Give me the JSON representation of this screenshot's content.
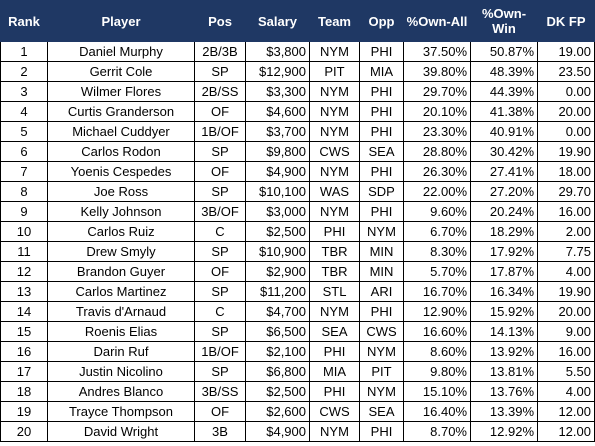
{
  "table": {
    "headers": [
      "Rank",
      "Player",
      "Pos",
      "Salary",
      "Team",
      "Opp",
      "%Own-All",
      "%Own-Win",
      "DK FP"
    ],
    "rows": [
      [
        "1",
        "Daniel Murphy",
        "2B/3B",
        "$3,800",
        "NYM",
        "PHI",
        "37.50%",
        "50.87%",
        "19.00"
      ],
      [
        "2",
        "Gerrit Cole",
        "SP",
        "$12,900",
        "PIT",
        "MIA",
        "39.80%",
        "48.39%",
        "23.50"
      ],
      [
        "3",
        "Wilmer Flores",
        "2B/SS",
        "$3,300",
        "NYM",
        "PHI",
        "29.70%",
        "44.39%",
        "0.00"
      ],
      [
        "4",
        "Curtis Granderson",
        "OF",
        "$4,600",
        "NYM",
        "PHI",
        "20.10%",
        "41.38%",
        "20.00"
      ],
      [
        "5",
        "Michael Cuddyer",
        "1B/OF",
        "$3,700",
        "NYM",
        "PHI",
        "23.30%",
        "40.91%",
        "0.00"
      ],
      [
        "6",
        "Carlos Rodon",
        "SP",
        "$9,800",
        "CWS",
        "SEA",
        "28.80%",
        "30.42%",
        "19.90"
      ],
      [
        "7",
        "Yoenis Cespedes",
        "OF",
        "$4,900",
        "NYM",
        "PHI",
        "26.30%",
        "27.41%",
        "18.00"
      ],
      [
        "8",
        "Joe Ross",
        "SP",
        "$10,100",
        "WAS",
        "SDP",
        "22.00%",
        "27.20%",
        "29.70"
      ],
      [
        "9",
        "Kelly Johnson",
        "3B/OF",
        "$3,000",
        "NYM",
        "PHI",
        "9.60%",
        "20.24%",
        "16.00"
      ],
      [
        "10",
        "Carlos Ruiz",
        "C",
        "$2,500",
        "PHI",
        "NYM",
        "6.70%",
        "18.29%",
        "2.00"
      ],
      [
        "11",
        "Drew Smyly",
        "SP",
        "$10,900",
        "TBR",
        "MIN",
        "8.30%",
        "17.92%",
        "7.75"
      ],
      [
        "12",
        "Brandon Guyer",
        "OF",
        "$2,900",
        "TBR",
        "MIN",
        "5.70%",
        "17.87%",
        "4.00"
      ],
      [
        "13",
        "Carlos Martinez",
        "SP",
        "$11,200",
        "STL",
        "ARI",
        "16.70%",
        "16.34%",
        "19.90"
      ],
      [
        "14",
        "Travis d'Arnaud",
        "C",
        "$4,700",
        "NYM",
        "PHI",
        "12.90%",
        "15.92%",
        "20.00"
      ],
      [
        "15",
        "Roenis Elias",
        "SP",
        "$6,500",
        "SEA",
        "CWS",
        "16.60%",
        "14.13%",
        "9.00"
      ],
      [
        "16",
        "Darin Ruf",
        "1B/OF",
        "$2,100",
        "PHI",
        "NYM",
        "8.60%",
        "13.92%",
        "16.00"
      ],
      [
        "17",
        "Justin Nicolino",
        "SP",
        "$6,800",
        "MIA",
        "PIT",
        "9.80%",
        "13.81%",
        "5.50"
      ],
      [
        "18",
        "Andres Blanco",
        "3B/SS",
        "$2,500",
        "PHI",
        "NYM",
        "15.10%",
        "13.76%",
        "4.00"
      ],
      [
        "19",
        "Trayce Thompson",
        "OF",
        "$2,600",
        "CWS",
        "SEA",
        "16.40%",
        "13.39%",
        "12.00"
      ],
      [
        "20",
        "David Wright",
        "3B",
        "$4,900",
        "NYM",
        "PHI",
        "8.70%",
        "12.92%",
        "12.00"
      ]
    ]
  },
  "colors": {
    "header_bg": "#1f3864",
    "header_text": "#ffffff"
  }
}
